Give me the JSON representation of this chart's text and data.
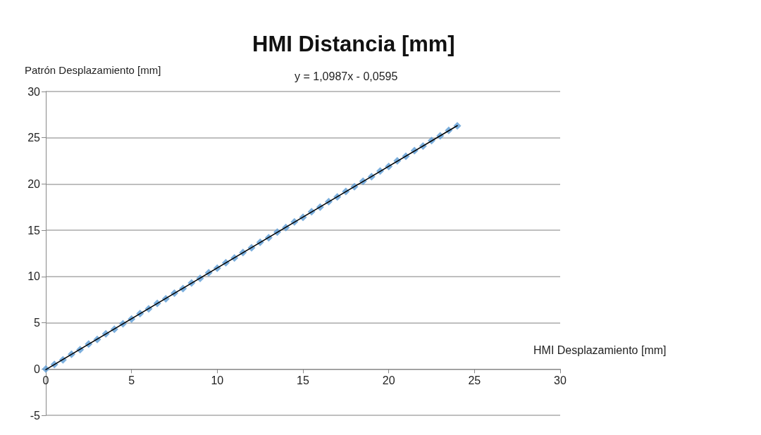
{
  "chart_data": {
    "type": "scatter",
    "title": "HMI Distancia [mm]",
    "xlabel": "HMI Desplazamiento [mm]",
    "ylabel": "Patrón Desplazamiento [mm]",
    "annotations": [
      "y = 1,0987x - 0,0595"
    ],
    "x": [
      0,
      0.5,
      1,
      1.5,
      2,
      2.5,
      3,
      3.5,
      4,
      4.5,
      5,
      5.5,
      6,
      6.5,
      7,
      7.5,
      8,
      8.5,
      9,
      9.5,
      10,
      10.5,
      11,
      11.5,
      12,
      12.5,
      13,
      13.5,
      14,
      14.5,
      15,
      15.5,
      16,
      16.5,
      17,
      17.5,
      18,
      18.5,
      19,
      19.5,
      20,
      20.5,
      21,
      21.5,
      22,
      22.5,
      23,
      23.5,
      24
    ],
    "series": [
      {
        "color": "#5b9bd5",
        "marker": "diamond",
        "values": [
          0,
          0.5,
          1.0,
          1.6,
          2.1,
          2.7,
          3.2,
          3.8,
          4.3,
          4.9,
          5.4,
          6.0,
          6.5,
          7.1,
          7.6,
          8.2,
          8.7,
          9.3,
          9.8,
          10.4,
          10.9,
          11.5,
          12.0,
          12.6,
          13.1,
          13.7,
          14.2,
          14.8,
          15.3,
          15.9,
          16.4,
          17.0,
          17.5,
          18.1,
          18.6,
          19.2,
          19.7,
          20.3,
          20.8,
          21.4,
          21.9,
          22.5,
          23.0,
          23.6,
          24.1,
          24.7,
          25.2,
          25.8,
          26.3
        ]
      },
      {
        "type": "line",
        "color": "#000000",
        "marker": "none",
        "line_style": "solid",
        "x": [
          0,
          24
        ],
        "values": [
          -0.06,
          26.31
        ]
      }
    ],
    "xlim": [
      0,
      30
    ],
    "xticks": [
      0,
      5,
      10,
      15,
      20,
      25,
      30
    ],
    "ylim": [
      -5,
      30
    ],
    "yticks": [
      -5,
      0,
      5,
      10,
      15,
      20,
      25,
      30
    ],
    "grid": "y"
  }
}
